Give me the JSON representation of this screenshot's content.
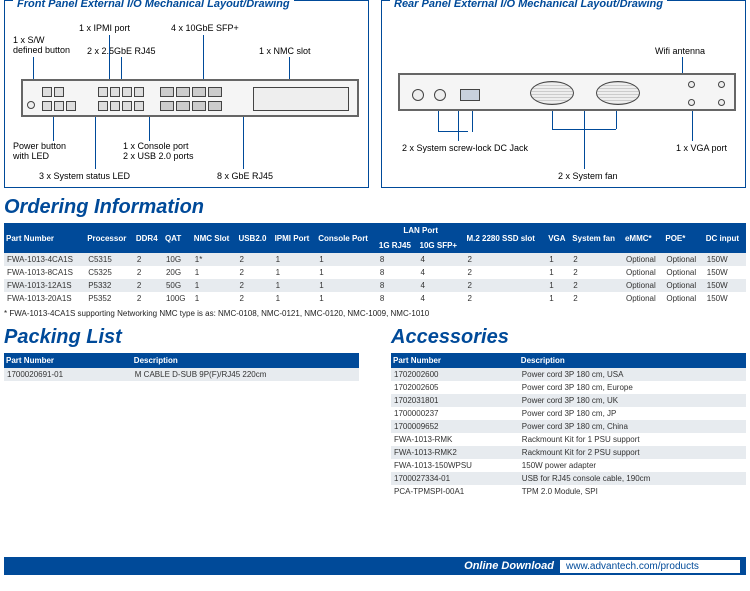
{
  "panels": {
    "front": {
      "title": "Front Panel External I/O Mechanical Layout/Drawing",
      "callouts": {
        "sw_btn": "1 x S/W\ndefined button",
        "ipmi": "1 x IPMI port",
        "rj45_25g": "2 x 2.5GbE RJ45",
        "sfp10g": "4 x 10GbE SFP+",
        "nmc_slot": "1 x NMC slot",
        "power_btn": "Power button\nwith LED",
        "console_usb": "1 x Console port\n2 x USB 2.0 ports",
        "status_led": "3 x System status LED",
        "rj45_8g": "8 x GbE RJ45"
      }
    },
    "rear": {
      "title": "Rear Panel External I/O Mechanical Layout/Drawing",
      "callouts": {
        "wifi": "Wifi antenna",
        "dcjack": "2 x System screw-lock DC Jack",
        "vga": "1 x VGA port",
        "fan": "2 x System fan"
      }
    }
  },
  "ordering": {
    "heading": "Ordering Information",
    "columns": [
      "Part Number",
      "Processor",
      "DDR4",
      "QAT",
      "NMC Slot",
      "USB2.0",
      "IPMI Port",
      "Console Port",
      "1G RJ45",
      "10G SFP+",
      "M.2 2280 SSD slot",
      "VGA",
      "System fan",
      "eMMC*",
      "POE*",
      "DC input"
    ],
    "lan_group": "LAN Port",
    "rows": [
      [
        "FWA-1013-4CA1S",
        "C5315",
        "2",
        "10G",
        "1*",
        "2",
        "1",
        "1",
        "8",
        "4",
        "2",
        "1",
        "2",
        "Optional",
        "Optional",
        "150W"
      ],
      [
        "FWA-1013-8CA1S",
        "C5325",
        "2",
        "20G",
        "1",
        "2",
        "1",
        "1",
        "8",
        "4",
        "2",
        "1",
        "2",
        "Optional",
        "Optional",
        "150W"
      ],
      [
        "FWA-1013-12A1S",
        "P5332",
        "2",
        "50G",
        "1",
        "2",
        "1",
        "1",
        "8",
        "4",
        "2",
        "1",
        "2",
        "Optional",
        "Optional",
        "150W"
      ],
      [
        "FWA-1013-20A1S",
        "P5352",
        "2",
        "100G",
        "1",
        "2",
        "1",
        "1",
        "8",
        "4",
        "2",
        "1",
        "2",
        "Optional",
        "Optional",
        "150W"
      ]
    ],
    "footnote": "* FWA-1013-4CA1S supporting Networking NMC type is as: NMC-0108, NMC-0121, NMC-0120, NMC-1009, NMC-1010"
  },
  "packing": {
    "heading": "Packing List",
    "columns": [
      "Part Number",
      "Description"
    ],
    "rows": [
      [
        "1700020691-01",
        "M CABLE D-SUB 9P(F)/RJ45 220cm"
      ]
    ]
  },
  "accessories": {
    "heading": "Accessories",
    "columns": [
      "Part Number",
      "Description"
    ],
    "rows": [
      [
        "1702002600",
        "Power cord 3P 180 cm, USA"
      ],
      [
        "1702002605",
        "Power cord 3P 180 cm, Europe"
      ],
      [
        "1702031801",
        "Power cord 3P 180 cm, UK"
      ],
      [
        "1700000237",
        "Power cord 3P 180 cm, JP"
      ],
      [
        "1700009652",
        "Power cord 3P 180 cm, China"
      ],
      [
        "FWA-1013-RMK",
        "Rackmount Kit for 1 PSU support"
      ],
      [
        "FWA-1013-RMK2",
        "Rackmount Kit for 2 PSU support"
      ],
      [
        "FWA-1013-150WPSU",
        "150W power adapter"
      ],
      [
        "1700027334-01",
        "USB for RJ45 console cable, 190cm"
      ],
      [
        "PCA-TPMSPI-00A1",
        "TPM 2.0 Module, SPI"
      ]
    ]
  },
  "download": {
    "label": "Online Download",
    "url": "www.advantech.com/products"
  },
  "colors": {
    "brand": "#004a99",
    "row_alt": "#e7ebef"
  }
}
